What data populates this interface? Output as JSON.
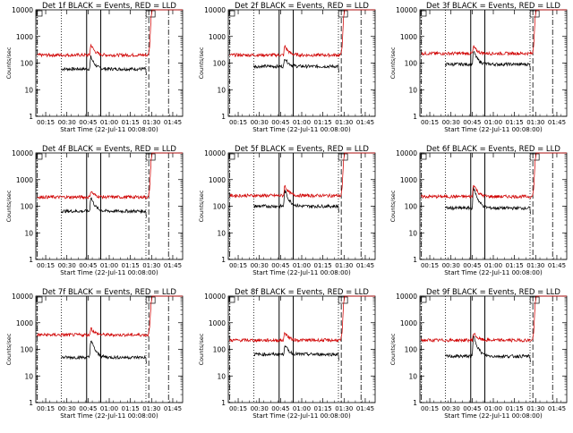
{
  "chart_data": [
    {
      "type": "line",
      "title": "Det 1f BLACK = Events, RED = LLD",
      "xlabel": "Start Time (22-Jul-11 00:08:00)",
      "ylabel": "Counts/sec",
      "x_ticks": [
        "00:15",
        "00:30",
        "00:45",
        "01:00",
        "01:15",
        "01:30",
        "01:45"
      ],
      "y_ticks": [
        "1",
        "10",
        "100",
        "1000",
        "10000"
      ],
      "y_scale": "log",
      "ylim": [
        1,
        10000
      ],
      "series": [
        {
          "name": "Events",
          "color": "#000000",
          "start": "00:26",
          "end": "01:26",
          "base": 60,
          "peak_at": "00:47",
          "peak": 170
        },
        {
          "name": "LLD",
          "color": "#d00000",
          "start": "00:09",
          "end": "01:28",
          "base": 200,
          "peak_at": "00:47",
          "peak": 500,
          "rise_to": 10000
        }
      ]
    },
    {
      "type": "line",
      "title": "Det 2f BLACK = Events, RED = LLD",
      "xlabel": "Start Time (22-Jul-11 00:08:00)",
      "ylabel": "Counts/sec",
      "x_ticks": [
        "00:15",
        "00:30",
        "00:45",
        "01:00",
        "01:15",
        "01:30",
        "01:45"
      ],
      "y_ticks": [
        "1",
        "10",
        "100",
        "1000",
        "10000"
      ],
      "y_scale": "log",
      "ylim": [
        1,
        10000
      ],
      "series": [
        {
          "name": "Events",
          "color": "#000000",
          "start": "00:26",
          "end": "01:26",
          "base": 75,
          "peak_at": "00:48",
          "peak": 160
        },
        {
          "name": "LLD",
          "color": "#d00000",
          "start": "00:09",
          "end": "01:28",
          "base": 200,
          "peak_at": "00:48",
          "peak": 450,
          "rise_to": 10000
        }
      ]
    },
    {
      "type": "line",
      "title": "Det 3f BLACK = Events, RED = LLD",
      "xlabel": "Start Time (22-Jul-11 00:08:00)",
      "ylabel": "Counts/sec",
      "x_ticks": [
        "00:15",
        "00:30",
        "00:45",
        "01:00",
        "01:15",
        "01:30",
        "01:45"
      ],
      "y_ticks": [
        "1",
        "10",
        "100",
        "1000",
        "10000"
      ],
      "y_scale": "log",
      "ylim": [
        1,
        10000
      ],
      "series": [
        {
          "name": "Events",
          "color": "#000000",
          "start": "00:26",
          "end": "01:26",
          "base": 90,
          "peak_at": "00:46",
          "peak": 280
        },
        {
          "name": "LLD",
          "color": "#d00000",
          "start": "00:09",
          "end": "01:28",
          "base": 230,
          "peak_at": "00:46",
          "peak": 420,
          "rise_to": 10000
        }
      ]
    },
    {
      "type": "line",
      "title": "Det 4f BLACK = Events, RED = LLD",
      "xlabel": "Start Time (22-Jul-11 00:08:00)",
      "ylabel": "Counts/sec",
      "x_ticks": [
        "00:15",
        "00:30",
        "00:45",
        "01:00",
        "01:15",
        "01:30",
        "01:45"
      ],
      "y_ticks": [
        "1",
        "10",
        "100",
        "1000",
        "10000"
      ],
      "y_scale": "log",
      "ylim": [
        1,
        10000
      ],
      "series": [
        {
          "name": "Events",
          "color": "#000000",
          "start": "00:26",
          "end": "01:26",
          "base": 65,
          "peak_at": "00:47",
          "peak": 220
        },
        {
          "name": "LLD",
          "color": "#d00000",
          "start": "00:09",
          "end": "01:28",
          "base": 220,
          "peak_at": "00:47",
          "peak": 380,
          "rise_to": 10000
        }
      ]
    },
    {
      "type": "line",
      "title": "Det 5f BLACK = Events, RED = LLD",
      "xlabel": "Start Time (22-Jul-11 00:08:00)",
      "ylabel": "Counts/sec",
      "x_ticks": [
        "00:15",
        "00:30",
        "00:45",
        "01:00",
        "01:15",
        "01:30",
        "01:45"
      ],
      "y_ticks": [
        "1",
        "10",
        "100",
        "1000",
        "10000"
      ],
      "y_scale": "log",
      "ylim": [
        1,
        10000
      ],
      "series": [
        {
          "name": "Events",
          "color": "#000000",
          "start": "00:26",
          "end": "01:26",
          "base": 100,
          "peak_at": "00:48",
          "peak": 400
        },
        {
          "name": "LLD",
          "color": "#d00000",
          "start": "00:09",
          "end": "01:28",
          "base": 250,
          "peak_at": "00:48",
          "peak": 600,
          "rise_to": 10000
        }
      ]
    },
    {
      "type": "line",
      "title": "Det 6f BLACK = Events, RED = LLD",
      "xlabel": "Start Time (22-Jul-11 00:08:00)",
      "ylabel": "Counts/sec",
      "x_ticks": [
        "00:15",
        "00:30",
        "00:45",
        "01:00",
        "01:15",
        "01:30",
        "01:45"
      ],
      "y_ticks": [
        "1",
        "10",
        "100",
        "1000",
        "10000"
      ],
      "y_scale": "log",
      "ylim": [
        1,
        10000
      ],
      "series": [
        {
          "name": "Events",
          "color": "#000000",
          "start": "00:26",
          "end": "01:26",
          "base": 85,
          "peak_at": "00:46",
          "peak": 500
        },
        {
          "name": "LLD",
          "color": "#d00000",
          "start": "00:09",
          "end": "01:28",
          "base": 230,
          "peak_at": "00:46",
          "peak": 700,
          "rise_to": 10000
        }
      ]
    },
    {
      "type": "line",
      "title": "Det 7f BLACK = Events, RED = LLD",
      "xlabel": "Start Time (22-Jul-11 00:08:00)",
      "ylabel": "Counts/sec",
      "x_ticks": [
        "00:15",
        "00:30",
        "00:45",
        "01:00",
        "01:15",
        "01:30",
        "01:45"
      ],
      "y_ticks": [
        "1",
        "10",
        "100",
        "1000",
        "10000"
      ],
      "y_scale": "log",
      "ylim": [
        1,
        10000
      ],
      "series": [
        {
          "name": "Events",
          "color": "#000000",
          "start": "00:26",
          "end": "01:26",
          "base": 50,
          "peak_at": "00:47",
          "peak": 230
        },
        {
          "name": "LLD",
          "color": "#d00000",
          "start": "00:09",
          "end": "01:28",
          "base": 350,
          "peak_at": "00:47",
          "peak": 650,
          "rise_to": 10000
        }
      ]
    },
    {
      "type": "line",
      "title": "Det 8f BLACK = Events, RED = LLD",
      "xlabel": "Start Time (22-Jul-11 00:08:00)",
      "ylabel": "Counts/sec",
      "x_ticks": [
        "00:15",
        "00:30",
        "00:45",
        "01:00",
        "01:15",
        "01:30",
        "01:45"
      ],
      "y_ticks": [
        "1",
        "10",
        "100",
        "1000",
        "10000"
      ],
      "y_scale": "log",
      "ylim": [
        1,
        10000
      ],
      "series": [
        {
          "name": "Events",
          "color": "#000000",
          "start": "00:26",
          "end": "01:26",
          "base": 65,
          "peak_at": "00:48",
          "peak": 150
        },
        {
          "name": "LLD",
          "color": "#d00000",
          "start": "00:09",
          "end": "01:28",
          "base": 220,
          "peak_at": "00:48",
          "peak": 450,
          "rise_to": 10000
        }
      ]
    },
    {
      "type": "line",
      "title": "Det 9f BLACK = Events, RED = LLD",
      "xlabel": "Start Time (22-Jul-11 00:08:00)",
      "ylabel": "Counts/sec",
      "x_ticks": [
        "00:15",
        "00:30",
        "00:45",
        "01:00",
        "01:15",
        "01:30",
        "01:45"
      ],
      "y_ticks": [
        "1",
        "10",
        "100",
        "1000",
        "10000"
      ],
      "y_scale": "log",
      "ylim": [
        1,
        10000
      ],
      "series": [
        {
          "name": "Events",
          "color": "#000000",
          "start": "00:26",
          "end": "01:26",
          "base": 55,
          "peak_at": "00:46",
          "peak": 320
        },
        {
          "name": "LLD",
          "color": "#d00000",
          "start": "00:09",
          "end": "01:28",
          "base": 220,
          "peak_at": "00:46",
          "peak": 420,
          "rise_to": 10000
        }
      ]
    }
  ]
}
